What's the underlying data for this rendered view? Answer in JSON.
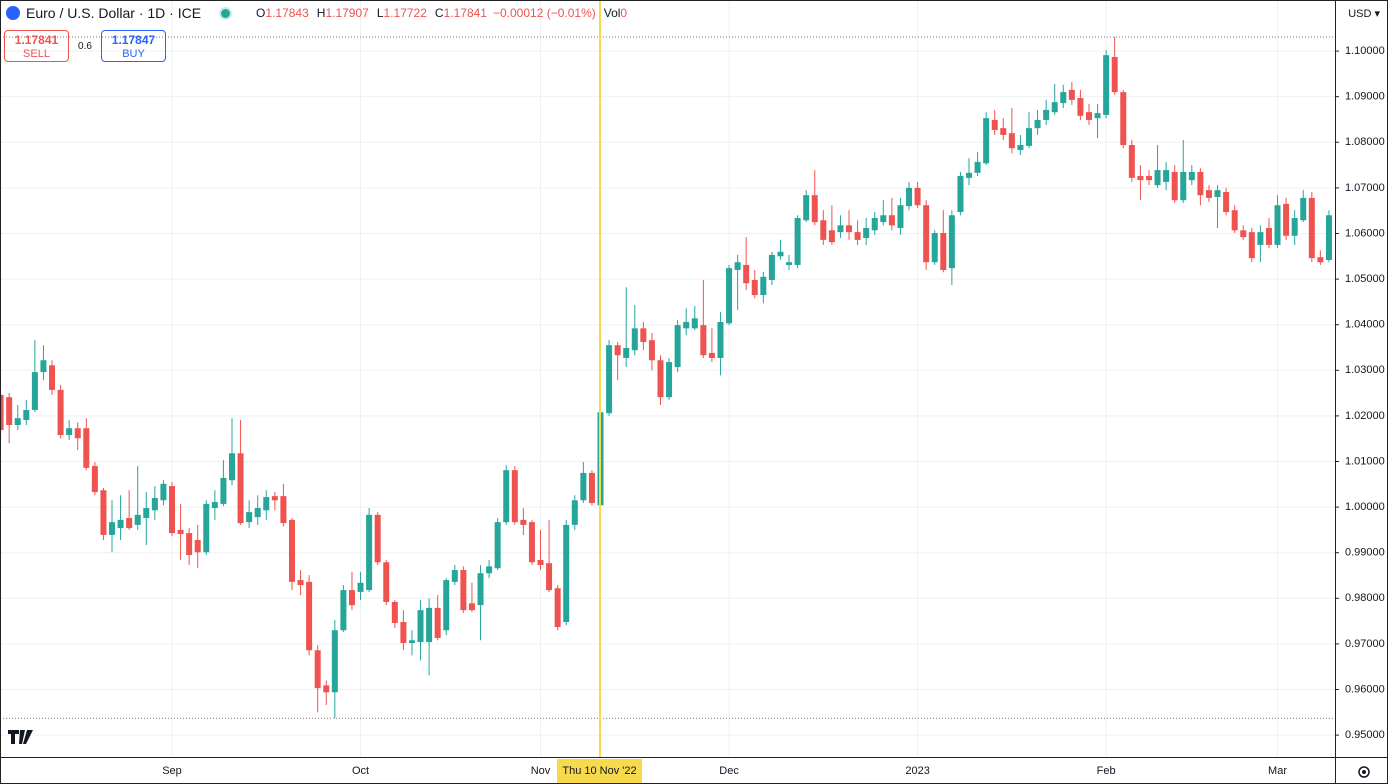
{
  "header": {
    "symbol": "Euro / U.S. Dollar · 1D · ICE",
    "ohlc": [
      {
        "key": "O",
        "value": "1.17843"
      },
      {
        "key": "H",
        "value": "1.17907"
      },
      {
        "key": "L",
        "value": "1.17722"
      },
      {
        "key": "C",
        "value": "1.17841"
      }
    ],
    "change": "−0.00012 (−0.01%)",
    "volume": {
      "key": "Vol",
      "value": "0"
    },
    "sell": {
      "price": "1.17841",
      "label": "SELL"
    },
    "spread": "0.6",
    "buy": {
      "price": "1.17847",
      "label": "BUY"
    },
    "currency": "USD",
    "crosshair_label": "Thu 10 Nov '22"
  },
  "chart_data": {
    "type": "candlestick",
    "up_color": "#26a69a",
    "down_color": "#ef5350",
    "grid": true,
    "ylim": [
      0.9452,
      1.1112
    ],
    "yticks": [
      {
        "value": 0.95,
        "label": "0.95000"
      },
      {
        "value": 0.96,
        "label": "0.96000"
      },
      {
        "value": 0.97,
        "label": "0.97000"
      },
      {
        "value": 0.98,
        "label": "0.98000"
      },
      {
        "value": 0.99,
        "label": "0.99000"
      },
      {
        "value": 1.0,
        "label": "1.00000"
      },
      {
        "value": 1.01,
        "label": "1.01000"
      },
      {
        "value": 1.02,
        "label": "1.02000"
      },
      {
        "value": 1.03,
        "label": "1.03000"
      },
      {
        "value": 1.04,
        "label": "1.04000"
      },
      {
        "value": 1.05,
        "label": "1.05000"
      },
      {
        "value": 1.06,
        "label": "1.06000"
      },
      {
        "value": 1.07,
        "label": "1.07000"
      },
      {
        "value": 1.08,
        "label": "1.08000"
      },
      {
        "value": 1.09,
        "label": "1.09000"
      },
      {
        "value": 1.1,
        "label": "1.10000"
      }
    ],
    "categories": [
      null,
      null,
      null,
      null,
      null,
      null,
      null,
      null,
      null,
      null,
      null,
      null,
      null,
      null,
      null,
      null,
      null,
      null,
      null,
      null,
      "Sep",
      null,
      null,
      null,
      null,
      null,
      null,
      null,
      null,
      null,
      null,
      null,
      null,
      null,
      null,
      null,
      null,
      null,
      null,
      null,
      null,
      null,
      "Oct",
      null,
      null,
      null,
      null,
      null,
      null,
      null,
      null,
      null,
      null,
      null,
      null,
      null,
      null,
      null,
      null,
      null,
      null,
      null,
      null,
      "Nov",
      null,
      null,
      null,
      null,
      null,
      null,
      null,
      null,
      null,
      null,
      null,
      null,
      null,
      null,
      null,
      null,
      null,
      null,
      null,
      null,
      null,
      "Dec",
      null,
      null,
      null,
      null,
      null,
      null,
      null,
      null,
      null,
      null,
      null,
      null,
      null,
      null,
      null,
      null,
      null,
      null,
      null,
      null,
      null,
      "2023",
      null,
      null,
      null,
      null,
      null,
      null,
      null,
      null,
      null,
      null,
      null,
      null,
      null,
      null,
      null,
      null,
      null,
      null,
      null,
      null,
      null,
      "Feb",
      null,
      null,
      null,
      null,
      null,
      null,
      null,
      null,
      null,
      null,
      null,
      null,
      null,
      null,
      null,
      null,
      null,
      null,
      null,
      "Mar",
      null,
      null,
      null,
      null,
      null,
      null
    ],
    "open": [
      1.0246,
      1.0241,
      1.018,
      1.0191,
      1.0213,
      1.0296,
      1.0311,
      1.0257,
      1.0158,
      1.0173,
      1.0173,
      1.009,
      1.0037,
      0.9939,
      0.9954,
      0.9976,
      0.9961,
      0.9976,
      0.9993,
      1.0015,
      1.0046,
      0.995,
      0.9943,
      0.9928,
      0.9901,
      0.9998,
      1.0007,
      1.0059,
      1.0118,
      0.9967,
      0.9978,
      0.9993,
      1.0024,
      1.0024,
      0.9972,
      0.984,
      0.9836,
      0.9686,
      0.9609,
      0.9594,
      0.973,
      0.9818,
      0.9814,
      0.9818,
      0.9983,
      0.9879,
      0.9792,
      0.9748,
      0.9702,
      0.9704,
      0.9704,
      0.9779,
      0.973,
      0.9836,
      0.9862,
      0.9789,
      0.9785,
      0.9855,
      0.9866,
      0.9967,
      1.0081,
      0.9972,
      0.9967,
      0.9884,
      0.9877,
      0.9822,
      0.9748,
      0.9961,
      1.0015,
      1.0075,
      1.0004,
      1.0206,
      1.0355,
      1.0327,
      1.0344,
      1.0392,
      1.0366,
      1.0322,
      1.0241,
      1.0307,
      1.0392,
      1.0392,
      1.0399,
      1.0338,
      1.0327,
      1.0403,
      1.052,
      1.0531,
      1.0498,
      1.0465,
      1.0498,
      1.055,
      1.0531,
      1.0531,
      1.0629,
      1.0684,
      1.0629,
      1.0607,
      1.0603,
      1.0618,
      1.0603,
      1.059,
      1.0607,
      1.0625,
      1.064,
      1.0612,
      1.066,
      1.07,
      1.0662,
      1.0537,
      1.0601,
      1.0524,
      1.0647,
      1.0722,
      1.0733,
      1.0754,
      1.0849,
      1.0831,
      1.082,
      1.0783,
      1.0792,
      1.0831,
      1.0849,
      1.0866,
      1.0886,
      1.0915,
      1.0897,
      1.0866,
      1.0853,
      1.086,
      1.0987,
      1.091,
      1.0794,
      1.0726,
      1.0726,
      1.0706,
      1.0713,
      1.0735,
      1.0673,
      1.0717,
      1.0735,
      1.0695,
      1.068,
      1.0691,
      1.0651,
      1.0607,
      1.0603,
      1.0575,
      1.0612,
      1.0575,
      1.0665,
      1.0595,
      1.0629,
      1.0678,
      1.0548,
      1.0542
    ],
    "high": [
      1.0257,
      1.025,
      1.0224,
      1.0235,
      1.0366,
      1.0355,
      1.0322,
      1.0268,
      1.0191,
      1.0186,
      1.0195,
      1.0099,
      1.0042,
      1.0015,
      1.0026,
      1.0037,
      1.009,
      1.0033,
      1.0046,
      1.0059,
      1.0055,
      1.0007,
      0.9954,
      0.9961,
      1.0015,
      1.0037,
      1.0103,
      1.0195,
      1.0191,
      1.0015,
      1.0026,
      1.0037,
      1.0033,
      1.0051,
      0.9976,
      0.9862,
      0.9851,
      0.9697,
      0.962,
      0.9752,
      0.9829,
      0.9858,
      0.9858,
      0.9998,
      0.9989,
      0.9884,
      0.9796,
      0.9774,
      0.973,
      0.9796,
      0.98,
      0.9807,
      0.9844,
      0.9873,
      0.987,
      0.9834,
      0.9873,
      0.9884,
      0.9976,
      1.0092,
      1.009,
      0.9998,
      0.9972,
      0.995,
      0.9972,
      0.9829,
      0.9972,
      1.0026,
      1.0099,
      1.0081,
      1.0224,
      1.0366,
      1.0362,
      1.0482,
      1.0443,
      1.0406,
      1.0382,
      1.0333,
      1.0327,
      1.041,
      1.0436,
      1.0441,
      1.0498,
      1.0392,
      1.0428,
      1.0531,
      1.0553,
      1.0592,
      1.052,
      1.0516,
      1.056,
      1.0586,
      1.0553,
      1.064,
      1.0695,
      1.0739,
      1.0651,
      1.0662,
      1.064,
      1.0651,
      1.0629,
      1.0634,
      1.0647,
      1.0673,
      1.0678,
      1.0678,
      1.0713,
      1.0713,
      1.0673,
      1.0607,
      1.0651,
      1.0651,
      1.0735,
      1.0765,
      1.0779,
      1.0866,
      1.0871,
      1.0853,
      1.0875,
      1.0816,
      1.0866,
      1.0871,
      1.0893,
      1.0928,
      1.0926,
      1.0932,
      1.0915,
      1.0884,
      1.0884,
      1.1002,
      1.1031,
      1.0915,
      1.0805,
      1.075,
      1.0739,
      1.0794,
      1.0757,
      1.075,
      1.0805,
      1.075,
      1.0743,
      1.0706,
      1.0706,
      1.07,
      1.0662,
      1.0618,
      1.0612,
      1.0618,
      1.0634,
      1.0684,
      1.0678,
      1.0651,
      1.0695,
      1.0691,
      1.0563,
      1.0651
    ],
    "low": [
      1.0147,
      1.014,
      1.0169,
      1.018,
      1.0208,
      1.0279,
      1.0246,
      1.0151,
      1.0147,
      1.0125,
      1.0081,
      1.0026,
      0.9928,
      0.9901,
      0.9928,
      0.995,
      0.995,
      0.9917,
      0.9972,
      1.0004,
      0.9936,
      0.9884,
      0.9873,
      0.9866,
      0.9895,
      0.9972,
      1.0002,
      1.0048,
      0.9961,
      0.9954,
      0.9961,
      0.9972,
      0.9993,
      0.9958,
      0.9818,
      0.9807,
      0.9675,
      0.955,
      0.9566,
      0.9537,
      0.9726,
      0.9774,
      0.9796,
      0.9814,
      0.9873,
      0.9785,
      0.9735,
      0.9686,
      0.9675,
      0.9664,
      0.9631,
      0.9708,
      0.9719,
      0.9829,
      0.9768,
      0.977,
      0.9708,
      0.9844,
      0.9862,
      0.9961,
      0.9961,
      0.9939,
      0.9873,
      0.9862,
      0.9814,
      0.973,
      0.9741,
      0.995,
      1.0009,
      1.0004,
      0.9932,
      1.02,
      1.0279,
      1.0307,
      1.0333,
      1.0344,
      1.03,
      1.0224,
      1.0235,
      1.0296,
      1.0377,
      1.0388,
      1.0327,
      1.0318,
      1.0289,
      1.0399,
      1.0432,
      1.0476,
      1.0458,
      1.0447,
      1.0487,
      1.0543,
      1.052,
      1.0524,
      1.0625,
      1.0618,
      1.0575,
      1.0575,
      1.059,
      1.0586,
      1.0575,
      1.0575,
      1.0597,
      1.0618,
      1.0607,
      1.0597,
      1.0651,
      1.0656,
      1.052,
      1.0531,
      1.0515,
      1.0487,
      1.064,
      1.0706,
      1.0726,
      1.075,
      1.0816,
      1.0805,
      1.0776,
      1.0772,
      1.0787,
      1.0816,
      1.0838,
      1.086,
      1.0875,
      1.0882,
      1.0849,
      1.0838,
      1.0809,
      1.0853,
      1.0904,
      1.0787,
      1.0713,
      1.0673,
      1.0706,
      1.07,
      1.0695,
      1.0667,
      1.0667,
      1.0706,
      1.0662,
      1.0669,
      1.0612,
      1.064,
      1.0601,
      1.0586,
      1.0537,
      1.0537,
      1.0568,
      1.0568,
      1.0586,
      1.0575,
      1.0625,
      1.0537,
      1.0531,
      1.0537
    ],
    "close": [
      1.0169,
      1.018,
      1.0195,
      1.0213,
      1.0296,
      1.0322,
      1.0257,
      1.0158,
      1.0173,
      1.0151,
      1.0086,
      1.0033,
      0.9939,
      0.9967,
      0.9972,
      0.9954,
      0.9983,
      0.9998,
      1.002,
      1.0051,
      0.9943,
      0.9941,
      0.9895,
      0.9901,
      1.0007,
      1.0011,
      1.0064,
      1.0118,
      0.9965,
      0.9989,
      0.9998,
      1.0022,
      1.0015,
      0.9965,
      0.9836,
      0.9829,
      0.9686,
      0.9603,
      0.9594,
      0.973,
      0.9818,
      0.9785,
      0.9834,
      0.9983,
      0.9879,
      0.9792,
      0.9746,
      0.9702,
      0.9708,
      0.9774,
      0.9779,
      0.9713,
      0.984,
      0.9862,
      0.9774,
      0.9774,
      0.9855,
      0.987,
      0.9967,
      1.0081,
      0.9967,
      0.9961,
      0.9879,
      0.9873,
      0.9818,
      0.9737,
      0.9961,
      1.0015,
      1.0075,
      1.0009,
      1.0208,
      1.0355,
      1.0333,
      1.0349,
      1.0392,
      1.0362,
      1.0322,
      1.0241,
      1.0318,
      1.0399,
      1.0406,
      1.0414,
      1.0333,
      1.0327,
      1.0406,
      1.0524,
      1.0537,
      1.0491,
      1.0465,
      1.0505,
      1.0553,
      1.056,
      1.0537,
      1.0634,
      1.0684,
      1.0625,
      1.0586,
      1.0581,
      1.0618,
      1.0603,
      1.0586,
      1.0612,
      1.0634,
      1.064,
      1.0618,
      1.0662,
      1.07,
      1.0662,
      1.0537,
      1.0601,
      1.052,
      1.064,
      1.0726,
      1.0733,
      1.0757,
      1.0853,
      1.0827,
      1.0816,
      1.0787,
      1.0794,
      1.0831,
      1.0849,
      1.0871,
      1.0888,
      1.091,
      1.0893,
      1.0858,
      1.0849,
      1.0864,
      1.0991,
      1.091,
      1.0794,
      1.0722,
      1.0717,
      1.0717,
      1.0739,
      1.0739,
      1.0673,
      1.0735,
      1.0735,
      1.0684,
      1.0678,
      1.0695,
      1.0647,
      1.0607,
      1.0592,
      1.0546,
      1.0603,
      1.0575,
      1.0662,
      1.0595,
      1.0634,
      1.0678,
      1.0546,
      1.0537,
      1.064
    ]
  }
}
